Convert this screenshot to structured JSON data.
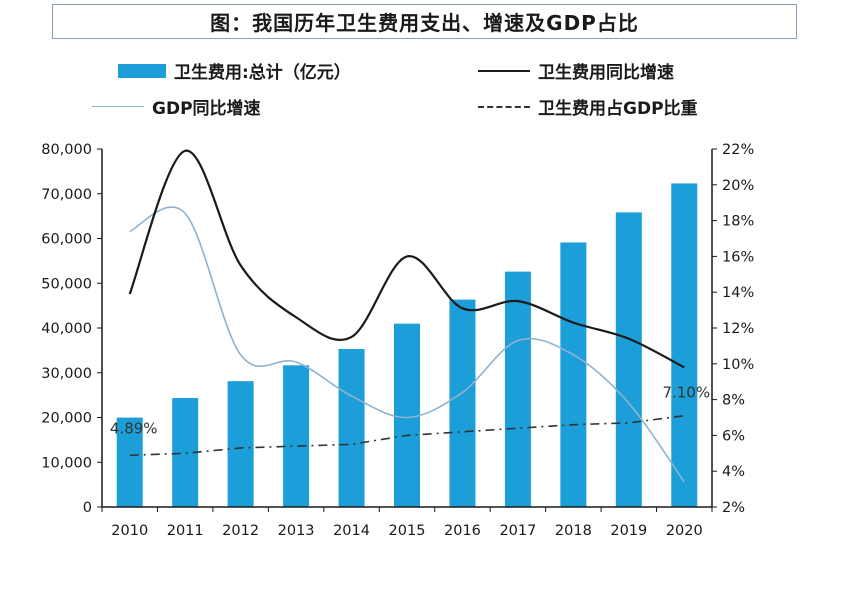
{
  "title": "图：我国历年卫生费用支出、增速及GDP占比",
  "legend": {
    "bar": "卫生费用:总计（亿元）",
    "growth": "卫生费用同比增速",
    "gdp_growth": "GDP同比增速",
    "share": "卫生费用占GDP比重"
  },
  "colors": {
    "bar": "#1c9fd9",
    "growth": "#1a1a1a",
    "gdp_growth": "#8fb2cf",
    "share": "#333333"
  },
  "chart_data": {
    "type": "bar",
    "categories": [
      "2010",
      "2011",
      "2012",
      "2013",
      "2014",
      "2015",
      "2016",
      "2017",
      "2018",
      "2019",
      "2020"
    ],
    "series": [
      {
        "name": "卫生费用:总计（亿元）",
        "type": "bar",
        "axis": "left",
        "values": [
          19980,
          24346,
          28119,
          31669,
          35312,
          40975,
          46345,
          52598,
          59122,
          65841,
          72306
        ]
      },
      {
        "name": "卫生费用同比增速",
        "type": "line",
        "axis": "right",
        "values": [
          13.9,
          21.9,
          15.5,
          12.6,
          11.5,
          16.0,
          13.1,
          13.5,
          12.3,
          11.4,
          9.8
        ]
      },
      {
        "name": "GDP同比增速",
        "type": "line",
        "axis": "right",
        "values": [
          17.4,
          18.4,
          10.5,
          10.1,
          8.2,
          7.0,
          8.4,
          11.3,
          10.5,
          7.8,
          3.4
        ]
      },
      {
        "name": "卫生费用占GDP比重",
        "type": "line",
        "axis": "right",
        "values": [
          4.89,
          5.0,
          5.3,
          5.4,
          5.5,
          6.0,
          6.2,
          6.4,
          6.6,
          6.7,
          7.1
        ]
      }
    ],
    "left_axis": {
      "ylim": [
        0,
        80000
      ],
      "ticks": [
        "0",
        "10,000",
        "20,000",
        "30,000",
        "40,000",
        "50,000",
        "60,000",
        "70,000",
        "80,000"
      ]
    },
    "right_axis": {
      "ylim": [
        2,
        22
      ],
      "ticks": [
        "2%",
        "4%",
        "6%",
        "8%",
        "10%",
        "12%",
        "14%",
        "16%",
        "18%",
        "20%",
        "22%"
      ]
    },
    "annotations": {
      "first": "4.89%",
      "last": "7.10%"
    },
    "grid": false,
    "legend_position": "top"
  }
}
